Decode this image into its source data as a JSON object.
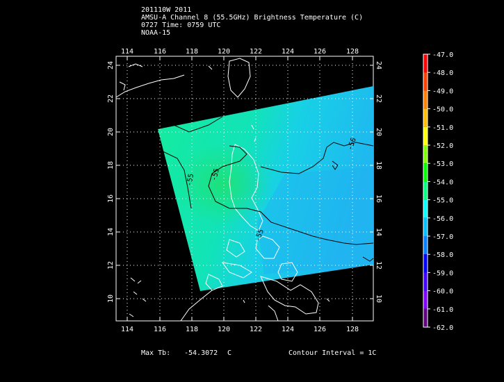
{
  "header": {
    "line1": "201110W 2011",
    "line2": "AMSU-A Channel 8 (55.5GHz) Brightness Temperature (C)",
    "line3": "0727 Time: 0759 UTC",
    "line4": "NOAA-15"
  },
  "footer": {
    "max_label": "Max Tb:",
    "max_value": "-54.3072",
    "max_unit": "C",
    "contour": "Contour Interval = 1C"
  },
  "map": {
    "lon_labels": [
      "114",
      "116",
      "118",
      "120",
      "122",
      "124",
      "126",
      "128"
    ],
    "lat_labels": [
      "10",
      "12",
      "14",
      "16",
      "18",
      "20",
      "22",
      "24"
    ],
    "lon_range": [
      113.2,
      129.4
    ],
    "lat_range": [
      8.7,
      24.6
    ],
    "contour_labels": [
      "-55",
      "-55",
      "-56",
      "-55"
    ]
  },
  "colorbar": {
    "labels": [
      "-47.0",
      "-48.0",
      "-49.0",
      "-50.0",
      "-51.0",
      "-52.0",
      "-53.0",
      "-54.0",
      "-55.0",
      "-56.0",
      "-57.0",
      "-58.0",
      "-59.0",
      "-60.0",
      "-61.0",
      "-62.0"
    ],
    "colors": [
      "#ff0000",
      "#ff4000",
      "#ff8000",
      "#ffbf00",
      "#ffff00",
      "#80ff00",
      "#00ff00",
      "#00ff80",
      "#00ffff",
      "#00bfff",
      "#0080ff",
      "#0000ff",
      "#4000ff",
      "#8000ff",
      "#600080",
      "#ffffff"
    ]
  }
}
